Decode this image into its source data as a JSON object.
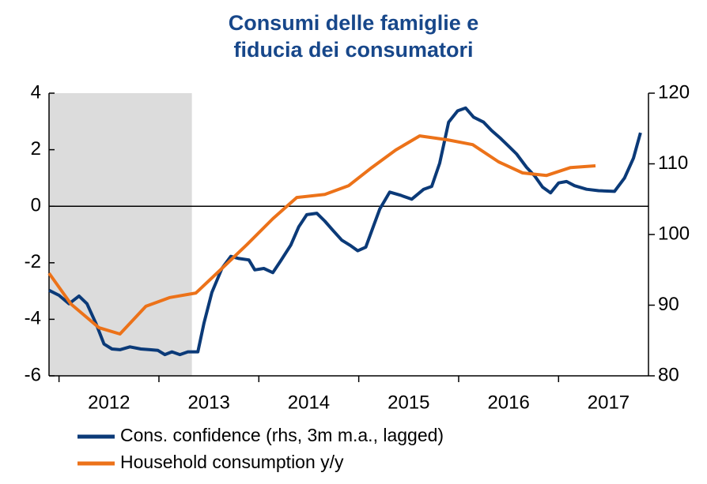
{
  "chart_data": {
    "type": "line",
    "title": [
      "Consumi delle famiglie e",
      "fiducia dei consumatori"
    ],
    "xlim": [
      2011.9,
      2017.9
    ],
    "xticks": [
      {
        "value": 2012.5,
        "label": "2012"
      },
      {
        "value": 2013.5,
        "label": "2013"
      },
      {
        "value": 2014.5,
        "label": "2014"
      },
      {
        "value": 2015.5,
        "label": "2015"
      },
      {
        "value": 2016.5,
        "label": "2016"
      },
      {
        "value": 2017.5,
        "label": "2017"
      }
    ],
    "xminor_ticks": [
      2012,
      2013,
      2014,
      2015,
      2016,
      2017
    ],
    "ylim": [
      -6,
      4
    ],
    "yticks": [
      -6,
      -4,
      -2,
      0,
      2,
      4
    ],
    "y2lim": [
      80,
      120
    ],
    "y2ticks": [
      80,
      90,
      100,
      110,
      120
    ],
    "shaded_region": [
      2011.9,
      2013.33
    ],
    "shade_color": "#dcdcdc",
    "series": [
      {
        "name": "Cons. confidence (rhs, 3m m.a., lagged)",
        "color": "#0b3a78",
        "axis": "y2",
        "x": [
          2011.9,
          2012.0,
          2012.1,
          2012.2,
          2012.28,
          2012.37,
          2012.45,
          2012.53,
          2012.61,
          2012.71,
          2012.82,
          2012.91,
          2012.99,
          2013.06,
          2013.13,
          2013.21,
          2013.29,
          2013.39,
          2013.45,
          2013.53,
          2013.63,
          2013.72,
          2013.8,
          2013.9,
          2013.96,
          2014.05,
          2014.14,
          2014.22,
          2014.32,
          2014.4,
          2014.48,
          2014.58,
          2014.66,
          2014.74,
          2014.83,
          2014.91,
          2014.99,
          2015.07,
          2015.15,
          2015.21,
          2015.31,
          2015.41,
          2015.53,
          2015.65,
          2015.73,
          2015.81,
          2015.9,
          2015.99,
          2016.07,
          2016.15,
          2016.25,
          2016.33,
          2016.42,
          2016.5,
          2016.58,
          2016.68,
          2016.76,
          2016.84,
          2016.92,
          2017.0,
          2017.08,
          2017.16,
          2017.28,
          2017.4,
          2017.56,
          2017.66,
          2017.75,
          2017.82
        ],
        "values": [
          92.1,
          91.4,
          90.2,
          91.3,
          90.2,
          87.4,
          84.5,
          83.8,
          83.7,
          84.1,
          83.8,
          83.7,
          83.6,
          83.0,
          83.4,
          83.0,
          83.4,
          83.4,
          87.4,
          91.8,
          95.2,
          96.9,
          96.6,
          96.4,
          95.0,
          95.2,
          94.6,
          96.3,
          98.5,
          101.1,
          102.8,
          103.0,
          101.9,
          100.6,
          99.2,
          98.5,
          97.7,
          98.2,
          101.3,
          103.6,
          106.0,
          105.6,
          105.0,
          106.4,
          106.8,
          110.1,
          115.9,
          117.5,
          117.9,
          116.6,
          115.9,
          114.7,
          113.6,
          112.5,
          111.4,
          109.5,
          108.3,
          106.7,
          105.9,
          107.3,
          107.5,
          106.9,
          106.4,
          106.2,
          106.1,
          108.0,
          110.8,
          114.4
        ]
      },
      {
        "name": "Household consumption y/y",
        "color": "#ec7219",
        "x": [
          2011.9,
          2012.12,
          2012.4,
          2012.61,
          2012.87,
          2013.11,
          2013.37,
          2013.63,
          2013.88,
          2014.14,
          2014.38,
          2014.66,
          2014.9,
          2015.13,
          2015.37,
          2015.61,
          2015.89,
          2016.14,
          2016.4,
          2016.64,
          2016.88,
          2017.12,
          2017.37
        ],
        "values": [
          -2.37,
          -3.46,
          -4.3,
          -4.52,
          -3.54,
          -3.23,
          -3.07,
          -2.2,
          -1.36,
          -0.44,
          0.31,
          0.42,
          0.73,
          1.37,
          1.99,
          2.49,
          2.35,
          2.18,
          1.57,
          1.18,
          1.09,
          1.37,
          1.43
        ]
      }
    ]
  }
}
